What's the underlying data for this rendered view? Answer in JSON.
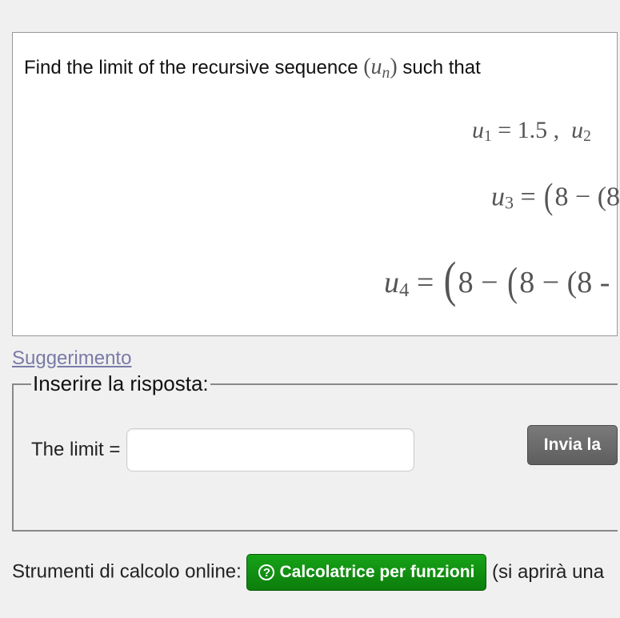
{
  "problem": {
    "intro_prefix": "Find the limit of the recursive sequence ",
    "seq_symbol_html": "(u<sub>n</sub>)",
    "intro_suffix": " such that",
    "eq1_html": "u<sub class='sub'>1</sub> = 1.5 ,&nbsp; u<sub class='sub'>2</sub> ",
    "eq2_html": "u<sub class='sub'>3</sub> = <span class='bigparen'>(</span>8 − (8",
    "eq3_html": "u<sub class='sub'>4</sub> = <span class='bigparen' style='font-size:1.65em'>(</span>8 − <span class='bigparen'>(</span>8 − (8 -",
    "colors": {
      "text": "#111111",
      "math": "#555555",
      "border": "#999999",
      "background": "#ffffff"
    }
  },
  "hint": {
    "label": "Suggerimento",
    "color": "#7a7aa8"
  },
  "answer": {
    "legend": "Inserire la risposta:",
    "label": "The limit =",
    "value": "",
    "placeholder": ""
  },
  "submit": {
    "label": "Invia la"
  },
  "tools": {
    "prefix": "Strumenti di calcolo online: ",
    "calc_button": "Calcolatrice per funzioni",
    "suffix": " (si aprirà una",
    "button_bg": "#0f8a0f"
  }
}
